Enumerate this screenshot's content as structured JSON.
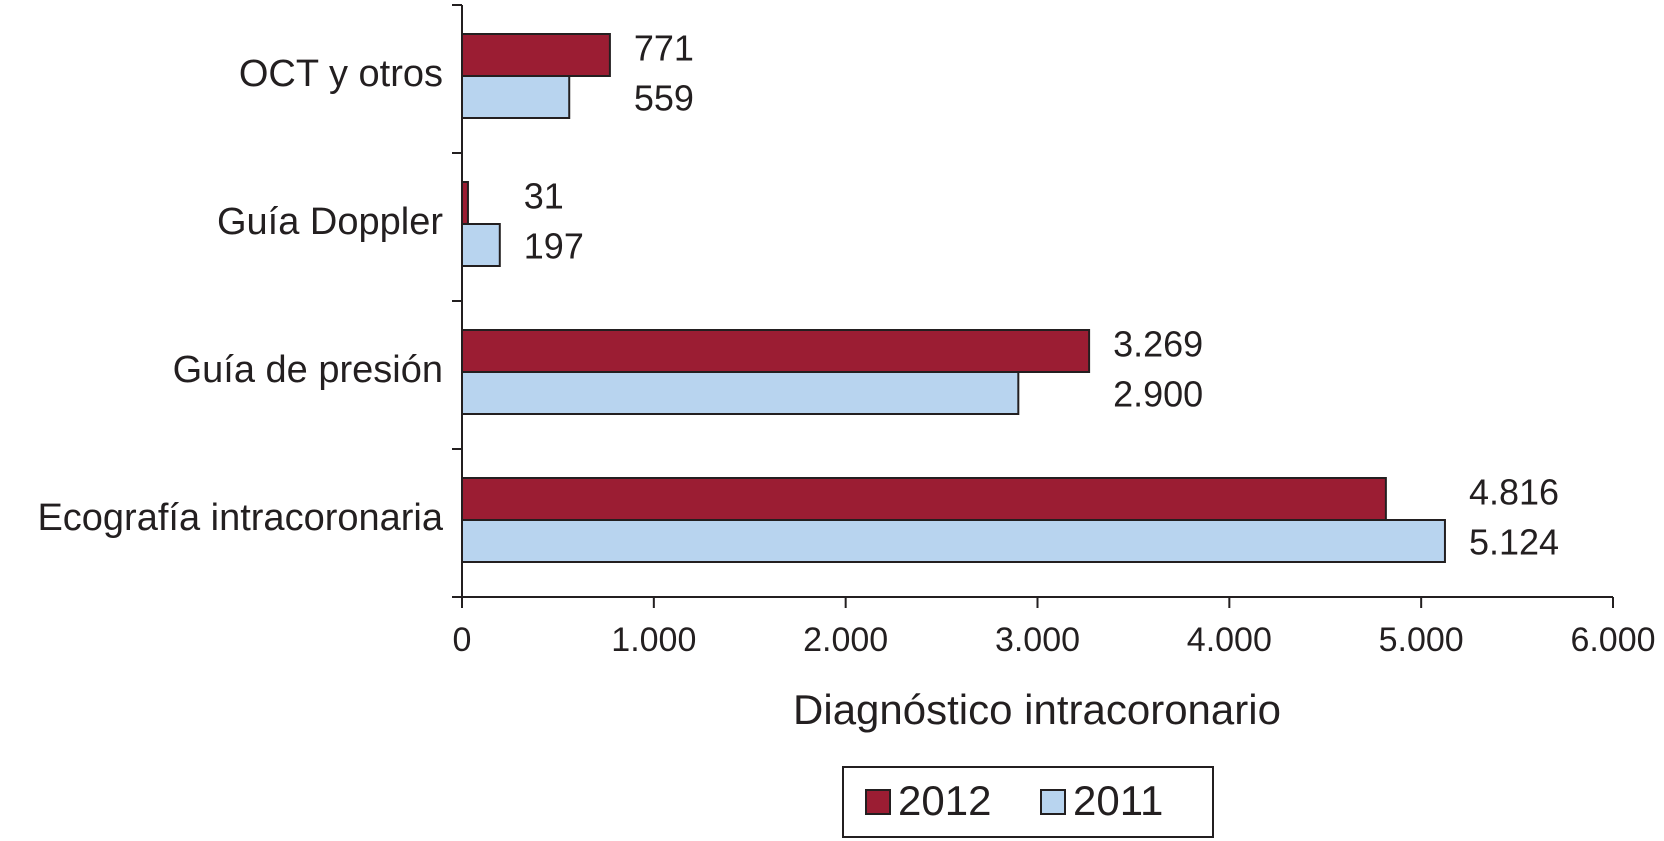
{
  "chart_data": {
    "type": "bar",
    "orientation": "horizontal",
    "xlabel": "Diagnóstico intracoronario",
    "categories": [
      "OCT y otros",
      "Guía Doppler",
      "Guía de presión",
      "Ecografía intracoronaria"
    ],
    "series": [
      {
        "name": "2012",
        "color": "#9b1d33",
        "values": [
          771,
          31,
          3269,
          4816
        ],
        "value_labels": [
          "771",
          "31",
          "3.269",
          "4.816"
        ]
      },
      {
        "name": "2011",
        "color": "#b8d4ef",
        "values": [
          559,
          197,
          2900,
          5124
        ],
        "value_labels": [
          "559",
          "197",
          "2.900",
          "5.124"
        ]
      }
    ],
    "xlim": [
      0,
      6000
    ],
    "xticks": [
      0,
      {
        "value": 1000,
        "label": "1.000"
      },
      {
        "value": 2000,
        "label": "2.000"
      },
      {
        "value": 3000,
        "label": "3.000"
      },
      {
        "value": 4000,
        "label": "4.000"
      },
      {
        "value": 5000,
        "label": "5.000"
      },
      {
        "value": 6000,
        "label": "6.000"
      }
    ],
    "legend": "bottom"
  }
}
